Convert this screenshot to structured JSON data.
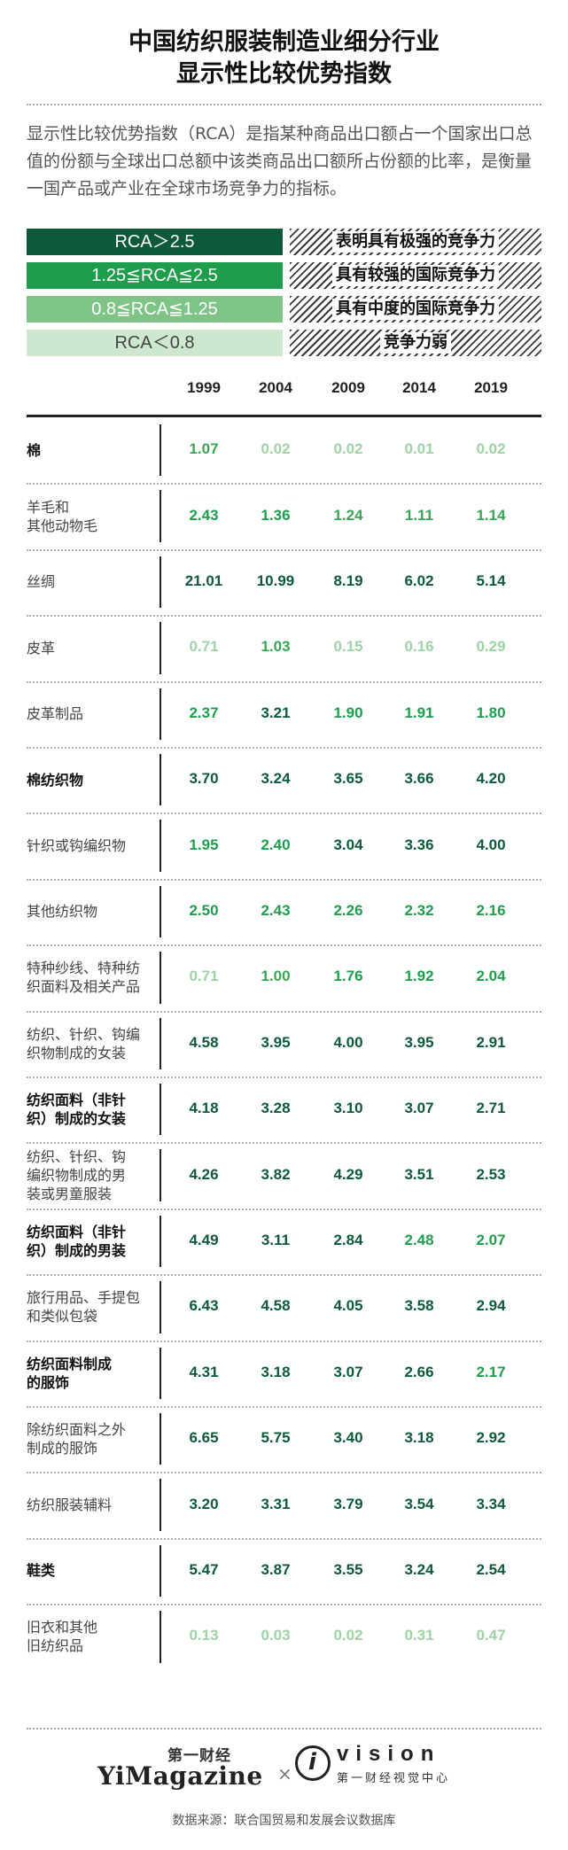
{
  "title": {
    "line1": "中国纺织服装制造业细分行业",
    "line2": "显示性比较优势指数"
  },
  "intro": "显示性比较优势指数（RCA）是指某种商品出口额占一个国家出口总值的份额与全球出口总额中该类商品出口额所占份额的比率，是衡量一国产品或产业在全球市场竞争力的指标。",
  "legend": [
    {
      "range": "RCA＞2.5",
      "desc": "表明具有极强的竞争力",
      "color": "#0d5a3a",
      "text_color": "#ffffff"
    },
    {
      "range": "1.25≦RCA≦2.5",
      "desc": "具有较强的国际竞争力",
      "color": "#1e9e4c",
      "text_color": "#ffffff"
    },
    {
      "range": "0.8≦RCA≦1.25",
      "desc": "具有中度的国际竞争力",
      "color": "#7ec486",
      "text_color": "#ffffff"
    },
    {
      "range": "RCA＜0.8",
      "desc": "竞争力弱",
      "color": "#cde8cf",
      "text_color": "#444444"
    }
  ],
  "chart_data": {
    "type": "table",
    "columns": [
      "1999",
      "2004",
      "2009",
      "2014",
      "2019"
    ],
    "rows": [
      {
        "label": "棉",
        "bold": true,
        "values": [
          "1.07",
          "0.02",
          "0.02",
          "0.01",
          "0.02"
        ]
      },
      {
        "label": "羊毛和\n其他动物毛",
        "bold": false,
        "values": [
          "2.43",
          "1.36",
          "1.24",
          "1.11",
          "1.14"
        ]
      },
      {
        "label": "丝绸",
        "bold": false,
        "values": [
          "21.01",
          "10.99",
          "8.19",
          "6.02",
          "5.14"
        ]
      },
      {
        "label": "皮革",
        "bold": false,
        "values": [
          "0.71",
          "1.03",
          "0.15",
          "0.16",
          "0.29"
        ]
      },
      {
        "label": "皮革制品",
        "bold": false,
        "values": [
          "2.37",
          "3.21",
          "1.90",
          "1.91",
          "1.80"
        ]
      },
      {
        "label": "棉纺织物",
        "bold": true,
        "values": [
          "3.70",
          "3.24",
          "3.65",
          "3.66",
          "4.20"
        ]
      },
      {
        "label": "针织或钩编织物",
        "bold": false,
        "values": [
          "1.95",
          "2.40",
          "3.04",
          "3.36",
          "4.00"
        ]
      },
      {
        "label": "其他纺织物",
        "bold": false,
        "values": [
          "2.50",
          "2.43",
          "2.26",
          "2.32",
          "2.16"
        ]
      },
      {
        "label": "特种纱线、特种纺\n织面料及相关产品",
        "bold": false,
        "values": [
          "0.71",
          "1.00",
          "1.76",
          "1.92",
          "2.04"
        ]
      },
      {
        "label": "纺织、针织、钩编\n织物制成的女装",
        "bold": false,
        "values": [
          "4.58",
          "3.95",
          "4.00",
          "3.95",
          "2.91"
        ]
      },
      {
        "label": "纺织面料（非针\n织）制成的女装",
        "bold": true,
        "values": [
          "4.18",
          "3.28",
          "3.10",
          "3.07",
          "2.71"
        ]
      },
      {
        "label": "纺织、针织、钩\n编织物制成的男\n装或男童服装",
        "bold": false,
        "values": [
          "4.26",
          "3.82",
          "4.29",
          "3.51",
          "2.53"
        ]
      },
      {
        "label": "纺织面料（非针\n织）制成的男装",
        "bold": true,
        "values": [
          "4.49",
          "3.11",
          "2.84",
          "2.48",
          "2.07"
        ]
      },
      {
        "label": "旅行用品、手提包\n和类似包袋",
        "bold": false,
        "values": [
          "6.43",
          "4.58",
          "4.05",
          "3.58",
          "2.94"
        ]
      },
      {
        "label": "纺织面料制成\n的服饰",
        "bold": true,
        "values": [
          "4.31",
          "3.18",
          "3.07",
          "2.66",
          "2.17"
        ]
      },
      {
        "label": "除纺织面料之外\n制成的服饰",
        "bold": false,
        "values": [
          "6.65",
          "5.75",
          "3.40",
          "3.18",
          "2.92"
        ]
      },
      {
        "label": "纺织服装辅料",
        "bold": false,
        "values": [
          "3.20",
          "3.31",
          "3.79",
          "3.54",
          "3.34"
        ]
      },
      {
        "label": "鞋类",
        "bold": true,
        "values": [
          "5.47",
          "3.87",
          "3.55",
          "3.24",
          "2.54"
        ]
      },
      {
        "label": "旧衣和其他\n旧纺织品",
        "bold": false,
        "values": [
          "0.13",
          "0.03",
          "0.02",
          "0.31",
          "0.47"
        ]
      }
    ],
    "value_colors": {
      "very_strong": "#0d5a3a",
      "strong": "#1e9e4c",
      "moderate": "#3aa655",
      "weak": "#9fd3a6"
    }
  },
  "logos": {
    "logo1_top": "第一财经",
    "logo1_main": "YiMagazine",
    "cross": "×",
    "logo2_i": "i",
    "logo2_main": "vision",
    "logo2_sub": "第一财经视觉中心"
  },
  "source": "数据来源：联合国贸易和发展会议数据库"
}
